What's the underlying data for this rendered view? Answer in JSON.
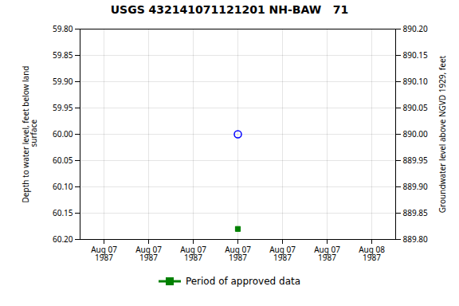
{
  "chart_data": {
    "type": "scatter",
    "title": "USGS 432141071121201 NH-BAW   71",
    "ylabel": "Depth to water level, feet below land\n surface",
    "y2label": "Groundwater level above NGVD 1929, feet",
    "categories": [
      "Aug 07\n1987",
      "Aug 07\n1987",
      "Aug 07\n1987",
      "Aug 07\n1987",
      "Aug 07\n1987",
      "Aug 07\n1987",
      "Aug 08\n1987"
    ],
    "series": [
      {
        "color": "#0000ff",
        "marker": "circle",
        "values": [
          null,
          null,
          null,
          60.0,
          null,
          null,
          null
        ]
      },
      {
        "name": "Period of approved data",
        "color": "#008000",
        "marker": "square",
        "values": [
          null,
          null,
          null,
          60.18,
          null,
          null,
          null
        ]
      }
    ],
    "ylim": [
      60.2,
      59.8
    ],
    "yticks": [
      {
        "value": 59.8,
        "label": "59.80"
      },
      {
        "value": 59.85,
        "label": "59.85"
      },
      {
        "value": 59.9,
        "label": "59.90"
      },
      {
        "value": 59.95,
        "label": "59.95"
      },
      {
        "value": 60.0,
        "label": "60.00"
      },
      {
        "value": 60.05,
        "label": "60.05"
      },
      {
        "value": 60.1,
        "label": "60.10"
      },
      {
        "value": 60.15,
        "label": "60.15"
      },
      {
        "value": 60.2,
        "label": "60.20"
      }
    ],
    "y2lim": [
      889.8,
      890.2
    ],
    "y2ticks": [
      {
        "value": 890.2,
        "label": "890.20"
      },
      {
        "value": 890.15,
        "label": "890.15"
      },
      {
        "value": 890.1,
        "label": "890.10"
      },
      {
        "value": 890.05,
        "label": "890.05"
      },
      {
        "value": 890.0,
        "label": "890.00"
      },
      {
        "value": 889.95,
        "label": "889.95"
      },
      {
        "value": 889.9,
        "label": "889.90"
      },
      {
        "value": 889.85,
        "label": "889.85"
      },
      {
        "value": 889.8,
        "label": "889.80"
      }
    ],
    "grid": true,
    "legend": "bottom"
  }
}
